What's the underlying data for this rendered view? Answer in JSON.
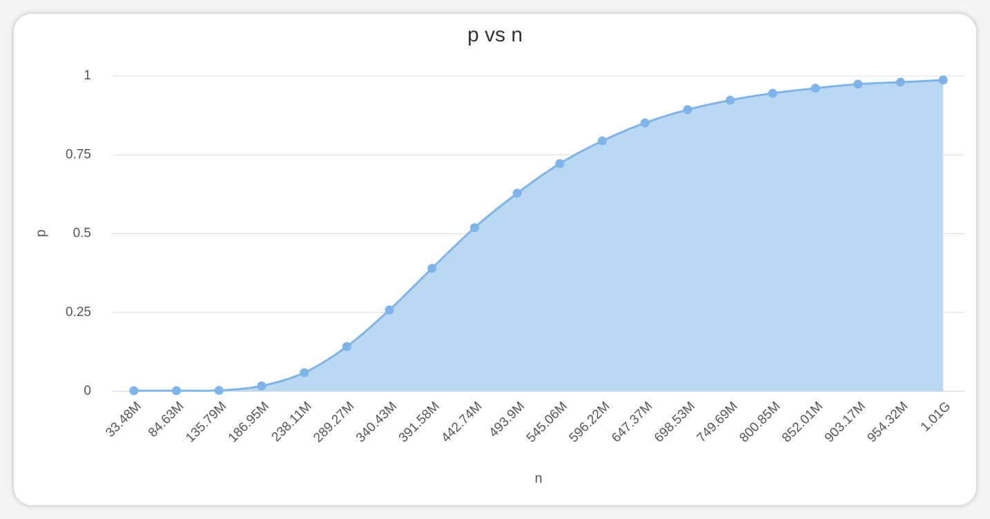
{
  "chart_data": {
    "type": "area",
    "title": "p vs n",
    "x_label": "n",
    "y_label": "p",
    "categories": [
      "33.48M",
      "84.63M",
      "135.79M",
      "186.95M",
      "238.11M",
      "289.27M",
      "340.43M",
      "391.58M",
      "442.74M",
      "493.9M",
      "545.06M",
      "596.22M",
      "647.37M",
      "698.53M",
      "749.69M",
      "800.85M",
      "852.01M",
      "903.17M",
      "954.32M",
      "1.01G"
    ],
    "series": [
      {
        "name": "p",
        "color": "#7eb4ea",
        "fill": "#bad8f2",
        "values": [
          0.002,
          0.002,
          0.003,
          0.017,
          0.059,
          0.142,
          0.258,
          0.39,
          0.519,
          0.628,
          0.722,
          0.794,
          0.851,
          0.893,
          0.923,
          0.945,
          0.961,
          0.974,
          0.98,
          0.987
        ]
      }
    ],
    "ylim": [
      0,
      1
    ],
    "yticks": [
      0,
      0.25,
      0.5,
      0.75,
      1
    ],
    "grid": true,
    "smooth": true
  }
}
